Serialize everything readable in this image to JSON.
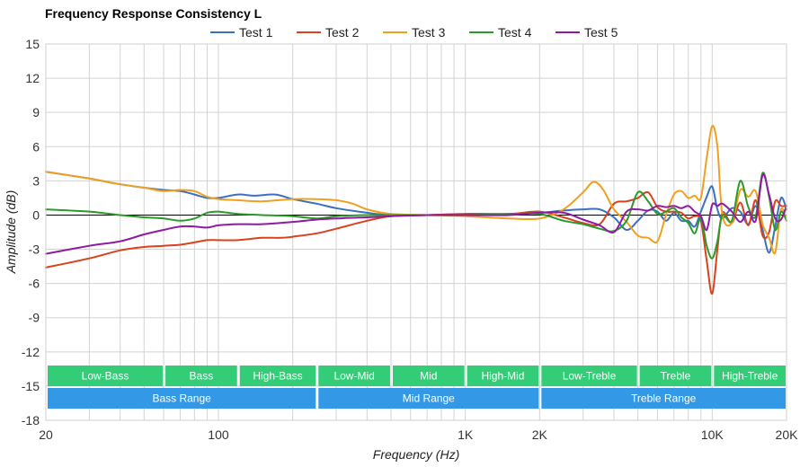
{
  "chart_data": {
    "type": "line",
    "title": "Frequency Response Consistency L",
    "xlabel": "Frequency (Hz)",
    "ylabel": "Amplitude (dB)",
    "xscale": "log",
    "xlim": [
      20,
      20000
    ],
    "ylim": [
      -18,
      15
    ],
    "grid": true,
    "legend_position": "top-center",
    "x_ticks": [
      {
        "value": 20,
        "label": "20"
      },
      {
        "value": 100,
        "label": "100"
      },
      {
        "value": 1000,
        "label": "1K"
      },
      {
        "value": 2000,
        "label": "2K"
      },
      {
        "value": 10000,
        "label": "10K"
      },
      {
        "value": 20000,
        "label": "20K"
      }
    ],
    "y_ticks": [
      {
        "value": 15,
        "label": "15"
      },
      {
        "value": 12,
        "label": "12"
      },
      {
        "value": 9,
        "label": "9"
      },
      {
        "value": 6,
        "label": "6"
      },
      {
        "value": 3,
        "label": "3"
      },
      {
        "value": 0,
        "label": "0"
      },
      {
        "value": -3,
        "label": "-3"
      },
      {
        "value": -6,
        "label": "-6"
      },
      {
        "value": -9,
        "label": "-9"
      },
      {
        "value": -12,
        "label": "-12"
      },
      {
        "value": -15,
        "label": "-15"
      },
      {
        "value": -18,
        "label": "-18"
      }
    ],
    "series": [
      {
        "name": "Test 1",
        "color": "#3a6fc4",
        "points": [
          [
            20,
            3.8
          ],
          [
            30,
            3.2
          ],
          [
            40,
            2.7
          ],
          [
            50,
            2.4
          ],
          [
            60,
            2.2
          ],
          [
            70,
            2.1
          ],
          [
            80,
            1.8
          ],
          [
            90,
            1.5
          ],
          [
            100,
            1.5
          ],
          [
            120,
            1.8
          ],
          [
            140,
            1.7
          ],
          [
            170,
            1.8
          ],
          [
            200,
            1.4
          ],
          [
            250,
            1.0
          ],
          [
            300,
            0.6
          ],
          [
            400,
            0.2
          ],
          [
            500,
            0.0
          ],
          [
            700,
            0.0
          ],
          [
            1000,
            0.1
          ],
          [
            1500,
            0.1
          ],
          [
            2000,
            0.2
          ],
          [
            2500,
            0.4
          ],
          [
            3000,
            0.5
          ],
          [
            3500,
            0.5
          ],
          [
            4000,
            -0.2
          ],
          [
            4500,
            -1.3
          ],
          [
            5000,
            -0.5
          ],
          [
            5500,
            0.4
          ],
          [
            6000,
            0.3
          ],
          [
            6500,
            -0.5
          ],
          [
            7000,
            0.2
          ],
          [
            7500,
            -0.5
          ],
          [
            8000,
            -0.5
          ],
          [
            8500,
            -1.0
          ],
          [
            9000,
            0.3
          ],
          [
            9500,
            1.6
          ],
          [
            10000,
            2.5
          ],
          [
            10500,
            0.5
          ],
          [
            11000,
            -0.3
          ],
          [
            12000,
            0.6
          ],
          [
            13000,
            0.3
          ],
          [
            14000,
            -0.8
          ],
          [
            15000,
            0.8
          ],
          [
            16000,
            -1.3
          ],
          [
            17000,
            -3.3
          ],
          [
            18000,
            -1.0
          ],
          [
            19000,
            1.5
          ],
          [
            20000,
            0.5
          ]
        ]
      },
      {
        "name": "Test 2",
        "color": "#d9421c",
        "points": [
          [
            20,
            -4.6
          ],
          [
            30,
            -3.8
          ],
          [
            40,
            -3.1
          ],
          [
            50,
            -2.8
          ],
          [
            60,
            -2.7
          ],
          [
            70,
            -2.6
          ],
          [
            80,
            -2.4
          ],
          [
            90,
            -2.2
          ],
          [
            100,
            -2.2
          ],
          [
            120,
            -2.2
          ],
          [
            150,
            -2.0
          ],
          [
            180,
            -2.0
          ],
          [
            200,
            -1.9
          ],
          [
            250,
            -1.6
          ],
          [
            300,
            -1.2
          ],
          [
            400,
            -0.5
          ],
          [
            500,
            -0.1
          ],
          [
            700,
            0.0
          ],
          [
            1000,
            0.1
          ],
          [
            1500,
            0.1
          ],
          [
            2000,
            0.3
          ],
          [
            2500,
            -0.2
          ],
          [
            3000,
            -0.7
          ],
          [
            3500,
            -0.8
          ],
          [
            4000,
            1.0
          ],
          [
            4500,
            1.2
          ],
          [
            5000,
            1.5
          ],
          [
            5500,
            2.0
          ],
          [
            6000,
            0.7
          ],
          [
            6500,
            0.3
          ],
          [
            7000,
            0.3
          ],
          [
            7500,
            0.2
          ],
          [
            8000,
            -0.3
          ],
          [
            8500,
            -0.1
          ],
          [
            9000,
            -0.5
          ],
          [
            9500,
            -4.0
          ],
          [
            10000,
            -6.9
          ],
          [
            10500,
            -3.0
          ],
          [
            11000,
            0.2
          ],
          [
            12000,
            -0.7
          ],
          [
            13000,
            1.1
          ],
          [
            14000,
            -0.9
          ],
          [
            15000,
            1.3
          ],
          [
            16000,
            -1.8
          ],
          [
            17000,
            -1.5
          ],
          [
            18000,
            1.2
          ],
          [
            19000,
            0.8
          ],
          [
            20000,
            0.8
          ]
        ]
      },
      {
        "name": "Test 3",
        "color": "#f0a020",
        "points": [
          [
            20,
            3.8
          ],
          [
            30,
            3.2
          ],
          [
            40,
            2.7
          ],
          [
            50,
            2.4
          ],
          [
            60,
            2.1
          ],
          [
            70,
            2.2
          ],
          [
            80,
            2.1
          ],
          [
            90,
            1.6
          ],
          [
            100,
            1.4
          ],
          [
            120,
            1.3
          ],
          [
            150,
            1.2
          ],
          [
            200,
            1.4
          ],
          [
            250,
            1.4
          ],
          [
            300,
            1.3
          ],
          [
            350,
            1.0
          ],
          [
            400,
            0.5
          ],
          [
            500,
            0.1
          ],
          [
            700,
            0.0
          ],
          [
            1000,
            -0.1
          ],
          [
            1500,
            -0.3
          ],
          [
            2000,
            -0.3
          ],
          [
            2500,
            0.5
          ],
          [
            3000,
            2.0
          ],
          [
            3300,
            2.9
          ],
          [
            3600,
            2.3
          ],
          [
            4000,
            0.5
          ],
          [
            4500,
            -0.6
          ],
          [
            5000,
            -1.8
          ],
          [
            5500,
            -2.0
          ],
          [
            6000,
            -2.3
          ],
          [
            6500,
            0.0
          ],
          [
            7000,
            1.8
          ],
          [
            7500,
            2.1
          ],
          [
            8000,
            1.5
          ],
          [
            8500,
            1.7
          ],
          [
            9000,
            1.5
          ],
          [
            9500,
            5.0
          ],
          [
            10000,
            7.8
          ],
          [
            10500,
            6.0
          ],
          [
            11000,
            0.0
          ],
          [
            12000,
            -0.7
          ],
          [
            13000,
            2.2
          ],
          [
            14000,
            1.6
          ],
          [
            15000,
            2.1
          ],
          [
            16000,
            -0.8
          ],
          [
            17000,
            -2.0
          ],
          [
            18000,
            -3.3
          ],
          [
            19000,
            0.5
          ],
          [
            20000,
            -0.5
          ]
        ]
      },
      {
        "name": "Test 4",
        "color": "#2b9a2b",
        "points": [
          [
            20,
            0.5
          ],
          [
            30,
            0.3
          ],
          [
            40,
            0.0
          ],
          [
            50,
            -0.2
          ],
          [
            60,
            -0.3
          ],
          [
            70,
            -0.5
          ],
          [
            80,
            -0.3
          ],
          [
            90,
            0.2
          ],
          [
            100,
            0.3
          ],
          [
            120,
            0.1
          ],
          [
            150,
            0.0
          ],
          [
            200,
            -0.1
          ],
          [
            250,
            -0.3
          ],
          [
            300,
            -0.1
          ],
          [
            400,
            0.0
          ],
          [
            500,
            0.0
          ],
          [
            700,
            0.0
          ],
          [
            1000,
            0.0
          ],
          [
            1500,
            0.1
          ],
          [
            2000,
            0.1
          ],
          [
            2500,
            -0.5
          ],
          [
            3000,
            -0.8
          ],
          [
            3500,
            -1.2
          ],
          [
            4000,
            -1.4
          ],
          [
            4500,
            -0.5
          ],
          [
            5000,
            2.0
          ],
          [
            5500,
            1.2
          ],
          [
            6000,
            0.1
          ],
          [
            6500,
            0.3
          ],
          [
            7000,
            0.6
          ],
          [
            7500,
            -0.2
          ],
          [
            8000,
            -0.7
          ],
          [
            8500,
            -1.6
          ],
          [
            9000,
            -0.3
          ],
          [
            9500,
            -2.7
          ],
          [
            10000,
            -3.8
          ],
          [
            10500,
            -2.3
          ],
          [
            11000,
            0.0
          ],
          [
            12000,
            -0.5
          ],
          [
            13000,
            3.0
          ],
          [
            14000,
            0.7
          ],
          [
            15000,
            -0.1
          ],
          [
            16000,
            3.7
          ],
          [
            17000,
            1.6
          ],
          [
            18000,
            -1.3
          ],
          [
            19000,
            0.3
          ],
          [
            20000,
            -0.5
          ]
        ]
      },
      {
        "name": "Test 5",
        "color": "#8e1ba0",
        "points": [
          [
            20,
            -3.4
          ],
          [
            30,
            -2.7
          ],
          [
            40,
            -2.3
          ],
          [
            50,
            -1.7
          ],
          [
            60,
            -1.3
          ],
          [
            70,
            -1.0
          ],
          [
            80,
            -1.0
          ],
          [
            90,
            -1.1
          ],
          [
            100,
            -0.9
          ],
          [
            120,
            -0.8
          ],
          [
            150,
            -0.8
          ],
          [
            200,
            -0.6
          ],
          [
            250,
            -0.4
          ],
          [
            300,
            -0.3
          ],
          [
            400,
            -0.2
          ],
          [
            500,
            -0.1
          ],
          [
            700,
            0.0
          ],
          [
            1000,
            0.0
          ],
          [
            1500,
            0.0
          ],
          [
            2000,
            0.2
          ],
          [
            2500,
            0.2
          ],
          [
            3000,
            -0.4
          ],
          [
            3500,
            -0.9
          ],
          [
            4000,
            -1.5
          ],
          [
            4500,
            0.3
          ],
          [
            5000,
            0.5
          ],
          [
            5500,
            0.4
          ],
          [
            6000,
            0.8
          ],
          [
            6500,
            0.7
          ],
          [
            7000,
            0.8
          ],
          [
            7500,
            0.6
          ],
          [
            8000,
            0.8
          ],
          [
            8500,
            0.3
          ],
          [
            9000,
            -0.1
          ],
          [
            9500,
            -1.3
          ],
          [
            10000,
            0.9
          ],
          [
            10500,
            0.8
          ],
          [
            11000,
            1.0
          ],
          [
            12000,
            0.3
          ],
          [
            13000,
            -0.6
          ],
          [
            14000,
            0.3
          ],
          [
            15000,
            -0.5
          ],
          [
            16000,
            3.5
          ],
          [
            17000,
            1.8
          ],
          [
            18000,
            -0.3
          ],
          [
            19000,
            -0.4
          ],
          [
            20000,
            0.8
          ]
        ]
      }
    ],
    "bands_top": [
      {
        "label": "Low-Bass",
        "from": 20,
        "to": 60
      },
      {
        "label": "Bass",
        "from": 60,
        "to": 120
      },
      {
        "label": "High-Bass",
        "from": 120,
        "to": 250
      },
      {
        "label": "Low-Mid",
        "from": 250,
        "to": 500
      },
      {
        "label": "Mid",
        "from": 500,
        "to": 1000
      },
      {
        "label": "High-Mid",
        "from": 1000,
        "to": 2000
      },
      {
        "label": "Low-Treble",
        "from": 2000,
        "to": 5000
      },
      {
        "label": "Treble",
        "from": 5000,
        "to": 10000
      },
      {
        "label": "High-Treble",
        "from": 10000,
        "to": 20000
      }
    ],
    "bands_bottom": [
      {
        "label": "Bass Range",
        "from": 20,
        "to": 250
      },
      {
        "label": "Mid Range",
        "from": 250,
        "to": 2000
      },
      {
        "label": "Treble Range",
        "from": 2000,
        "to": 20000
      }
    ],
    "band_colors": {
      "top": "#33cc77",
      "bottom": "#3399e6"
    }
  }
}
